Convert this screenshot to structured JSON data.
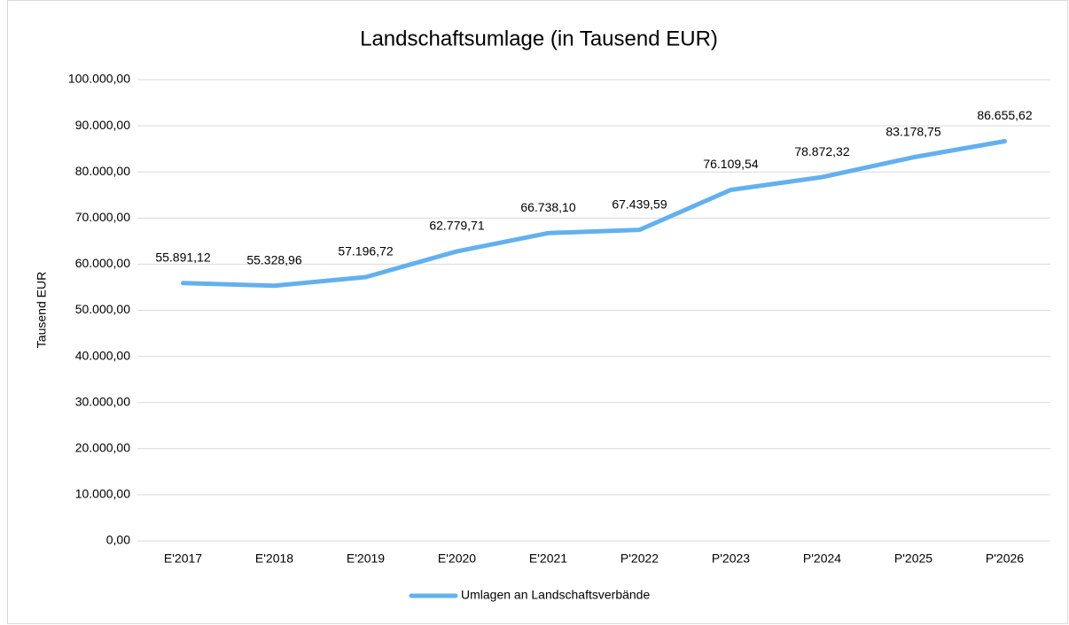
{
  "chart_data": {
    "type": "line",
    "title": "Landschaftsumlage (in Tausend EUR)",
    "y_label": "Tausend EUR",
    "categories": [
      "E'2017",
      "E'2018",
      "E'2019",
      "E'2020",
      "E'2021",
      "P'2022",
      "P'2023",
      "P'2024",
      "P'2025",
      "P'2026"
    ],
    "series": [
      {
        "name": "Umlagen an Landschaftsverbände",
        "color": "#63b0ee",
        "values": [
          55891.12,
          55328.96,
          57196.72,
          62779.71,
          66738.1,
          67439.59,
          76109.54,
          78872.32,
          83178.75,
          86655.62
        ],
        "value_labels": [
          "55.891,12",
          "55.328,96",
          "57.196,72",
          "62.779,71",
          "66.738,10",
          "67.439,59",
          "76.109,54",
          "78.872,32",
          "83.178,75",
          "86.655,62"
        ]
      }
    ],
    "ylim": [
      0,
      100000
    ],
    "yticks": [
      {
        "value": 0,
        "label": "0,00"
      },
      {
        "value": 10000,
        "label": "10.000,00"
      },
      {
        "value": 20000,
        "label": "20.000,00"
      },
      {
        "value": 30000,
        "label": "30.000,00"
      },
      {
        "value": 40000,
        "label": "40.000,00"
      },
      {
        "value": 50000,
        "label": "50.000,00"
      },
      {
        "value": 60000,
        "label": "60.000,00"
      },
      {
        "value": 70000,
        "label": "70.000,00"
      },
      {
        "value": 80000,
        "label": "80.000,00"
      },
      {
        "value": 90000,
        "label": "90.000,00"
      },
      {
        "value": 100000,
        "label": "100.000,00"
      }
    ],
    "grid": true,
    "legend": "bottom"
  }
}
